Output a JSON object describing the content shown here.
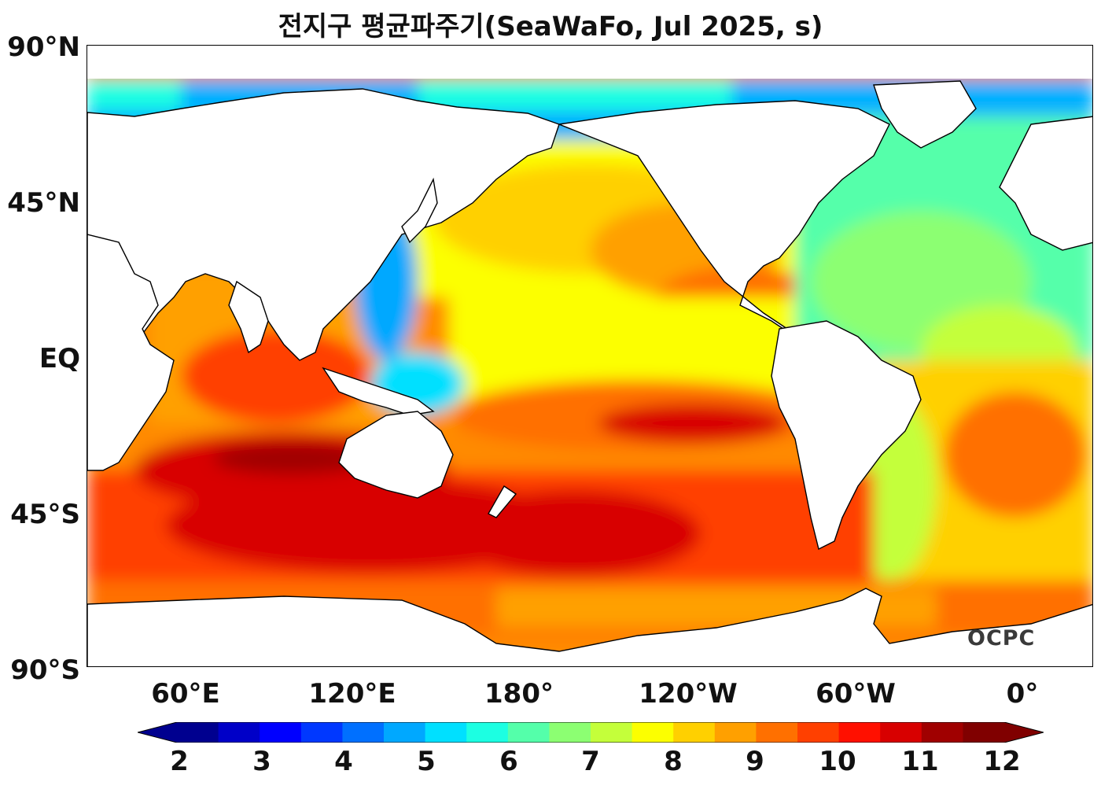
{
  "title": "전지구 평균파주기(SeaWaFo, Jul 2025, s)",
  "logo_text": "OCPC",
  "lat_labels": [
    "90°N",
    "45°N",
    "EQ",
    "45°S",
    "90°S"
  ],
  "lon_labels": [
    "60°E",
    "120°E",
    "180°",
    "120°W",
    "60°W",
    "0°"
  ],
  "colorbar": {
    "min": 2,
    "max": 12,
    "step": 0.5,
    "extend": "both",
    "ticks": [
      "2",
      "3",
      "4",
      "5",
      "6",
      "7",
      "8",
      "9",
      "10",
      "11",
      "12"
    ],
    "colors": [
      "#00008f",
      "#0000c8",
      "#0000ff",
      "#0038ff",
      "#0070ff",
      "#00a8ff",
      "#00e0ff",
      "#1cffe2",
      "#54ffaa",
      "#8cff72",
      "#c4ff3a",
      "#fcff00",
      "#ffd000",
      "#ffa000",
      "#ff7000",
      "#ff4000",
      "#ff1000",
      "#d80000",
      "#a00000",
      "#800000"
    ]
  },
  "colors": {
    "land": "#ffffff",
    "coast": "#000000",
    "arctic_limit_color": "#ffffff"
  }
}
